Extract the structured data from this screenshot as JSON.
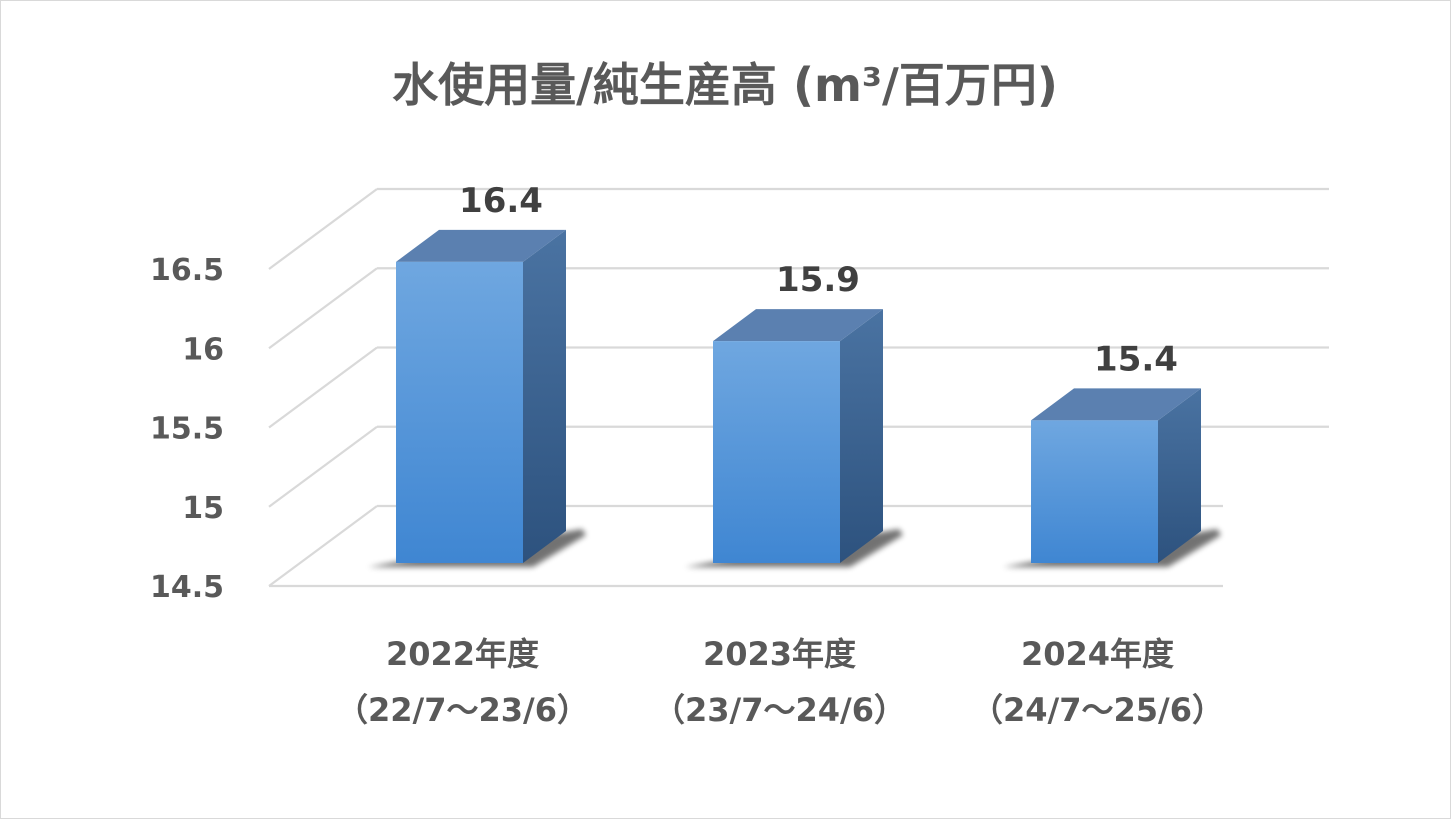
{
  "chart_data": {
    "type": "bar",
    "title": "水使用量/純生産高 (m³/百万円)",
    "categories": [
      {
        "line1": "2022年度",
        "line2": "（22/7～23/6）"
      },
      {
        "line1": "2023年度",
        "line2": "（23/7～24/6）"
      },
      {
        "line1": "2024年度",
        "line2": "（24/7～25/6）"
      }
    ],
    "values": [
      16.4,
      15.9,
      15.4
    ],
    "value_labels": [
      "16.4",
      "15.9",
      "15.4"
    ],
    "y_ticks": [
      "14.5",
      "15",
      "15.5",
      "16",
      "16.5"
    ],
    "ylim": [
      14.5,
      16.5
    ],
    "grid": true,
    "legend": "none",
    "style": "3d-column",
    "colors": {
      "bar_front_top": "#6fa7e0",
      "bar_front_bottom": "#3f86d2",
      "bar_top": "#5b80b0",
      "bar_side": "#365f8c",
      "grid": "#d9d9d9",
      "text": "#595959",
      "value_text": "#404040"
    }
  }
}
